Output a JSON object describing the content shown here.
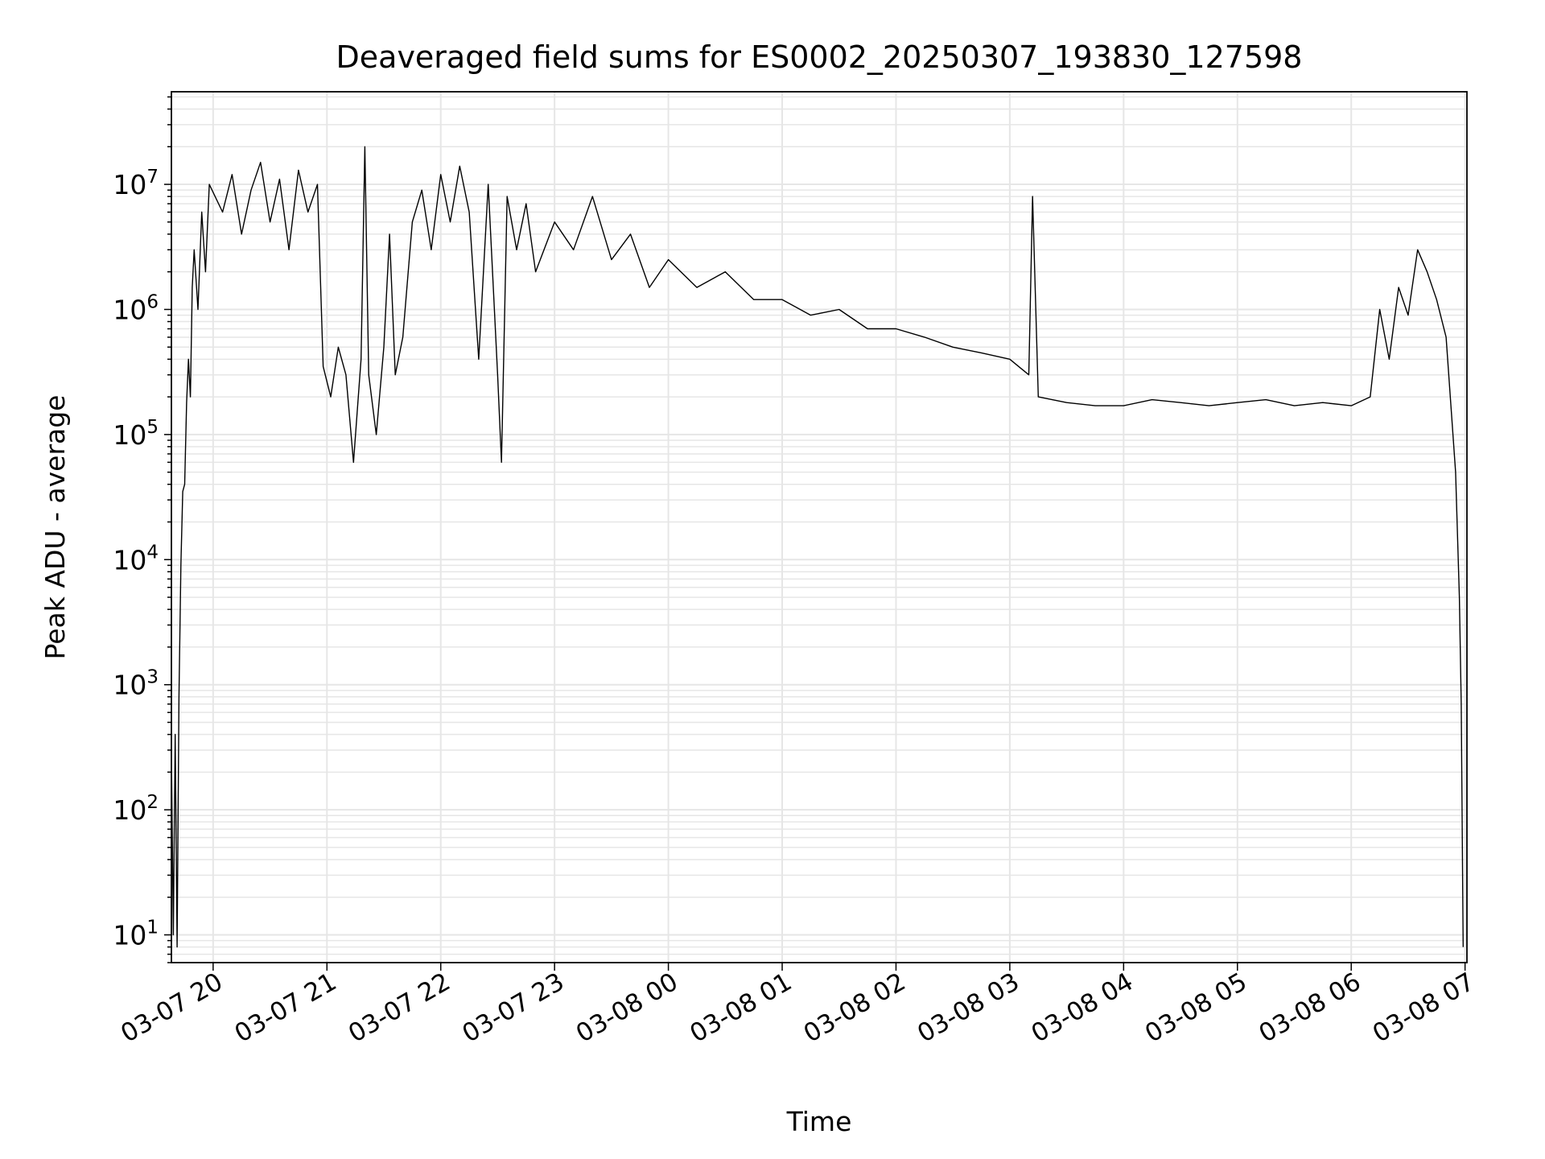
{
  "chart_data": {
    "type": "line",
    "title": "Deaveraged field sums for ES0002_20250307_193830_127598",
    "xlabel": "Time",
    "ylabel": "Peak ADU - average",
    "yscale": "log",
    "grid": true,
    "line_color": "#000000",
    "grid_color": "#e6e6e6",
    "xlim": [
      "2025-03-07 19:38",
      "2025-03-08 07:01"
    ],
    "ylim": [
      6,
      55000000
    ],
    "x_ticks": [
      {
        "t": "2025-03-07 20:00",
        "label": "03-07 20"
      },
      {
        "t": "2025-03-07 21:00",
        "label": "03-07 21"
      },
      {
        "t": "2025-03-07 22:00",
        "label": "03-07 22"
      },
      {
        "t": "2025-03-07 23:00",
        "label": "03-07 23"
      },
      {
        "t": "2025-03-08 00:00",
        "label": "03-08 00"
      },
      {
        "t": "2025-03-08 01:00",
        "label": "03-08 01"
      },
      {
        "t": "2025-03-08 02:00",
        "label": "03-08 02"
      },
      {
        "t": "2025-03-08 03:00",
        "label": "03-08 03"
      },
      {
        "t": "2025-03-08 04:00",
        "label": "03-08 04"
      },
      {
        "t": "2025-03-08 05:00",
        "label": "03-08 05"
      },
      {
        "t": "2025-03-08 06:00",
        "label": "03-08 06"
      },
      {
        "t": "2025-03-08 07:00",
        "label": "03-08 07"
      }
    ],
    "y_ticks": [
      {
        "value": 10,
        "exp": "1"
      },
      {
        "value": 100,
        "exp": "2"
      },
      {
        "value": 1000,
        "exp": "3"
      },
      {
        "value": 10000,
        "exp": "4"
      },
      {
        "value": 100000,
        "exp": "5"
      },
      {
        "value": 1000000,
        "exp": "6"
      },
      {
        "value": 10000000,
        "exp": "7"
      }
    ],
    "y_tick_base": "10",
    "series": [
      {
        "points": [
          [
            "2025-03-07 19:38",
            300
          ],
          [
            "2025-03-07 19:39",
            10
          ],
          [
            "2025-03-07 19:40",
            400
          ],
          [
            "2025-03-07 19:41",
            8
          ],
          [
            "2025-03-07 19:42",
            800
          ],
          [
            "2025-03-07 19:43",
            9000
          ],
          [
            "2025-03-07 19:44",
            35000
          ],
          [
            "2025-03-07 19:45",
            40000
          ],
          [
            "2025-03-07 19:46",
            180000
          ],
          [
            "2025-03-07 19:47",
            400000
          ],
          [
            "2025-03-07 19:48",
            200000
          ],
          [
            "2025-03-07 19:49",
            1500000
          ],
          [
            "2025-03-07 19:50",
            3000000
          ],
          [
            "2025-03-07 19:52",
            1000000
          ],
          [
            "2025-03-07 19:54",
            6000000
          ],
          [
            "2025-03-07 19:56",
            2000000
          ],
          [
            "2025-03-07 19:58",
            10000000
          ],
          [
            "2025-03-07 20:05",
            6000000
          ],
          [
            "2025-03-07 20:10",
            12000000
          ],
          [
            "2025-03-07 20:15",
            4000000
          ],
          [
            "2025-03-07 20:20",
            9000000
          ],
          [
            "2025-03-07 20:25",
            15000000
          ],
          [
            "2025-03-07 20:30",
            5000000
          ],
          [
            "2025-03-07 20:35",
            11000000
          ],
          [
            "2025-03-07 20:40",
            3000000
          ],
          [
            "2025-03-07 20:45",
            13000000
          ],
          [
            "2025-03-07 20:50",
            6000000
          ],
          [
            "2025-03-07 20:55",
            10000000
          ],
          [
            "2025-03-07 20:58",
            350000
          ],
          [
            "2025-03-07 21:02",
            200000
          ],
          [
            "2025-03-07 21:06",
            500000
          ],
          [
            "2025-03-07 21:10",
            300000
          ],
          [
            "2025-03-07 21:14",
            60000
          ],
          [
            "2025-03-07 21:18",
            400000
          ],
          [
            "2025-03-07 21:20",
            20000000
          ],
          [
            "2025-03-07 21:22",
            300000
          ],
          [
            "2025-03-07 21:26",
            100000
          ],
          [
            "2025-03-07 21:30",
            500000
          ],
          [
            "2025-03-07 21:33",
            4000000
          ],
          [
            "2025-03-07 21:36",
            300000
          ],
          [
            "2025-03-07 21:40",
            600000
          ],
          [
            "2025-03-07 21:45",
            5000000
          ],
          [
            "2025-03-07 21:50",
            9000000
          ],
          [
            "2025-03-07 21:55",
            3000000
          ],
          [
            "2025-03-07 22:00",
            12000000
          ],
          [
            "2025-03-07 22:05",
            5000000
          ],
          [
            "2025-03-07 22:10",
            14000000
          ],
          [
            "2025-03-07 22:15",
            6000000
          ],
          [
            "2025-03-07 22:20",
            400000
          ],
          [
            "2025-03-07 22:25",
            10000000
          ],
          [
            "2025-03-07 22:30",
            300000
          ],
          [
            "2025-03-07 22:32",
            60000
          ],
          [
            "2025-03-07 22:35",
            8000000
          ],
          [
            "2025-03-07 22:40",
            3000000
          ],
          [
            "2025-03-07 22:45",
            7000000
          ],
          [
            "2025-03-07 22:50",
            2000000
          ],
          [
            "2025-03-07 23:00",
            5000000
          ],
          [
            "2025-03-07 23:10",
            3000000
          ],
          [
            "2025-03-07 23:20",
            8000000
          ],
          [
            "2025-03-07 23:30",
            2500000
          ],
          [
            "2025-03-07 23:40",
            4000000
          ],
          [
            "2025-03-07 23:50",
            1500000
          ],
          [
            "2025-03-08 00:00",
            2500000
          ],
          [
            "2025-03-08 00:15",
            1500000
          ],
          [
            "2025-03-08 00:30",
            2000000
          ],
          [
            "2025-03-08 00:45",
            1200000
          ],
          [
            "2025-03-08 01:00",
            1200000
          ],
          [
            "2025-03-08 01:15",
            900000
          ],
          [
            "2025-03-08 01:30",
            1000000
          ],
          [
            "2025-03-08 01:45",
            700000
          ],
          [
            "2025-03-08 02:00",
            700000
          ],
          [
            "2025-03-08 02:15",
            600000
          ],
          [
            "2025-03-08 02:30",
            500000
          ],
          [
            "2025-03-08 02:45",
            450000
          ],
          [
            "2025-03-08 03:00",
            400000
          ],
          [
            "2025-03-08 03:10",
            300000
          ],
          [
            "2025-03-08 03:12",
            8000000
          ],
          [
            "2025-03-08 03:15",
            200000
          ],
          [
            "2025-03-08 03:30",
            180000
          ],
          [
            "2025-03-08 03:45",
            170000
          ],
          [
            "2025-03-08 04:00",
            170000
          ],
          [
            "2025-03-08 04:15",
            190000
          ],
          [
            "2025-03-08 04:30",
            180000
          ],
          [
            "2025-03-08 04:45",
            170000
          ],
          [
            "2025-03-08 05:00",
            180000
          ],
          [
            "2025-03-08 05:15",
            190000
          ],
          [
            "2025-03-08 05:30",
            170000
          ],
          [
            "2025-03-08 05:45",
            180000
          ],
          [
            "2025-03-08 06:00",
            170000
          ],
          [
            "2025-03-08 06:10",
            200000
          ],
          [
            "2025-03-08 06:15",
            1000000
          ],
          [
            "2025-03-08 06:20",
            400000
          ],
          [
            "2025-03-08 06:25",
            1500000
          ],
          [
            "2025-03-08 06:30",
            900000
          ],
          [
            "2025-03-08 06:35",
            3000000
          ],
          [
            "2025-03-08 06:40",
            2000000
          ],
          [
            "2025-03-08 06:45",
            1200000
          ],
          [
            "2025-03-08 06:50",
            600000
          ],
          [
            "2025-03-08 06:55",
            50000
          ],
          [
            "2025-03-08 06:57",
            5000
          ],
          [
            "2025-03-08 06:58",
            700
          ],
          [
            "2025-03-08 06:59",
            8
          ]
        ]
      }
    ]
  }
}
